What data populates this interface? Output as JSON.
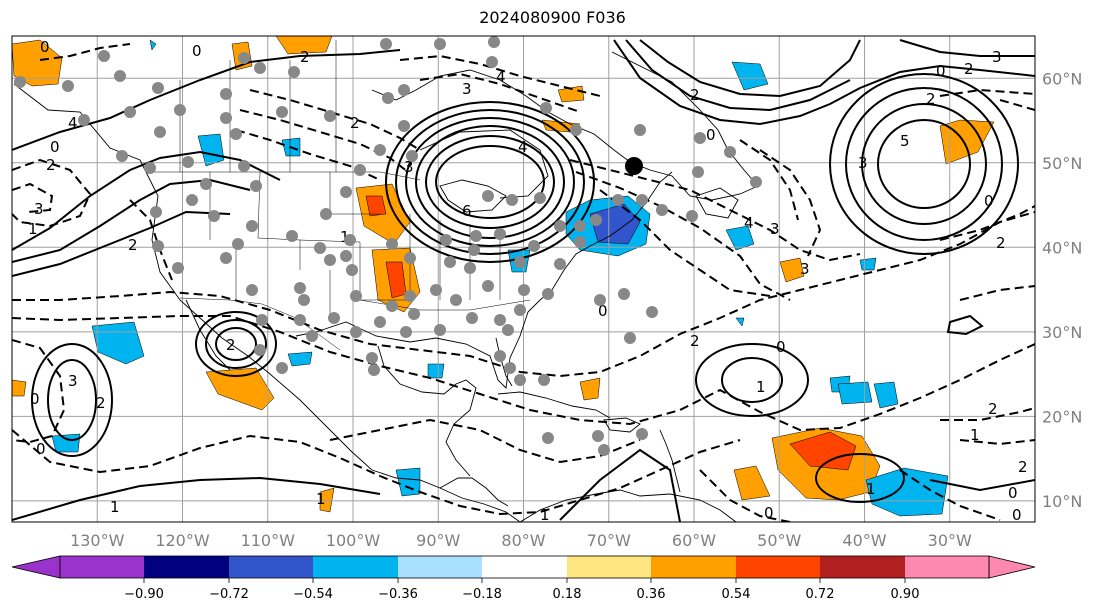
{
  "title": "2024080900 F036",
  "map": {
    "projection": "PlateCarree",
    "lon_range": [
      -140,
      -20
    ],
    "lat_range": [
      7.5,
      65
    ],
    "lon_ticks": [
      {
        "lon": -130,
        "label": "130°W"
      },
      {
        "lon": -120,
        "label": "120°W"
      },
      {
        "lon": -110,
        "label": "110°W"
      },
      {
        "lon": -100,
        "label": "100°W"
      },
      {
        "lon": -90,
        "label": "90°W"
      },
      {
        "lon": -80,
        "label": "80°W"
      },
      {
        "lon": -70,
        "label": "70°W"
      },
      {
        "lon": -60,
        "label": "60°W"
      },
      {
        "lon": -50,
        "label": "50°W"
      },
      {
        "lon": -40,
        "label": "40°W"
      },
      {
        "lon": -30,
        "label": "30°W"
      }
    ],
    "lat_ticks": [
      {
        "lat": 60,
        "label": "60°N"
      },
      {
        "lat": 50,
        "label": "50°N"
      },
      {
        "lat": 40,
        "label": "40°N"
      },
      {
        "lat": 30,
        "label": "30°N"
      },
      {
        "lat": 20,
        "label": "20°N"
      },
      {
        "lat": 10,
        "label": "10°N"
      }
    ],
    "grid": true,
    "contour_labels": [
      "0",
      "1",
      "2",
      "3",
      "4",
      "5",
      "6"
    ]
  },
  "colorbar": {
    "tick_labels": [
      "−0.90",
      "−0.72",
      "−0.54",
      "−0.36",
      "−0.18",
      "0.18",
      "0.36",
      "0.54",
      "0.72",
      "0.90"
    ],
    "colors": [
      "#9933cc",
      "#000080",
      "#3355cc",
      "#00b4f0",
      "#aae0ff",
      "#ffffff",
      "#ffe680",
      "#ffa000",
      "#ff4400",
      "#b21f1f",
      "#ff88b0"
    ],
    "extend": "both"
  },
  "colors": {
    "grid": "#a0a0a0",
    "tick_label": "#808080",
    "station_marker": "#888888",
    "highlight_marker": "#000000"
  }
}
